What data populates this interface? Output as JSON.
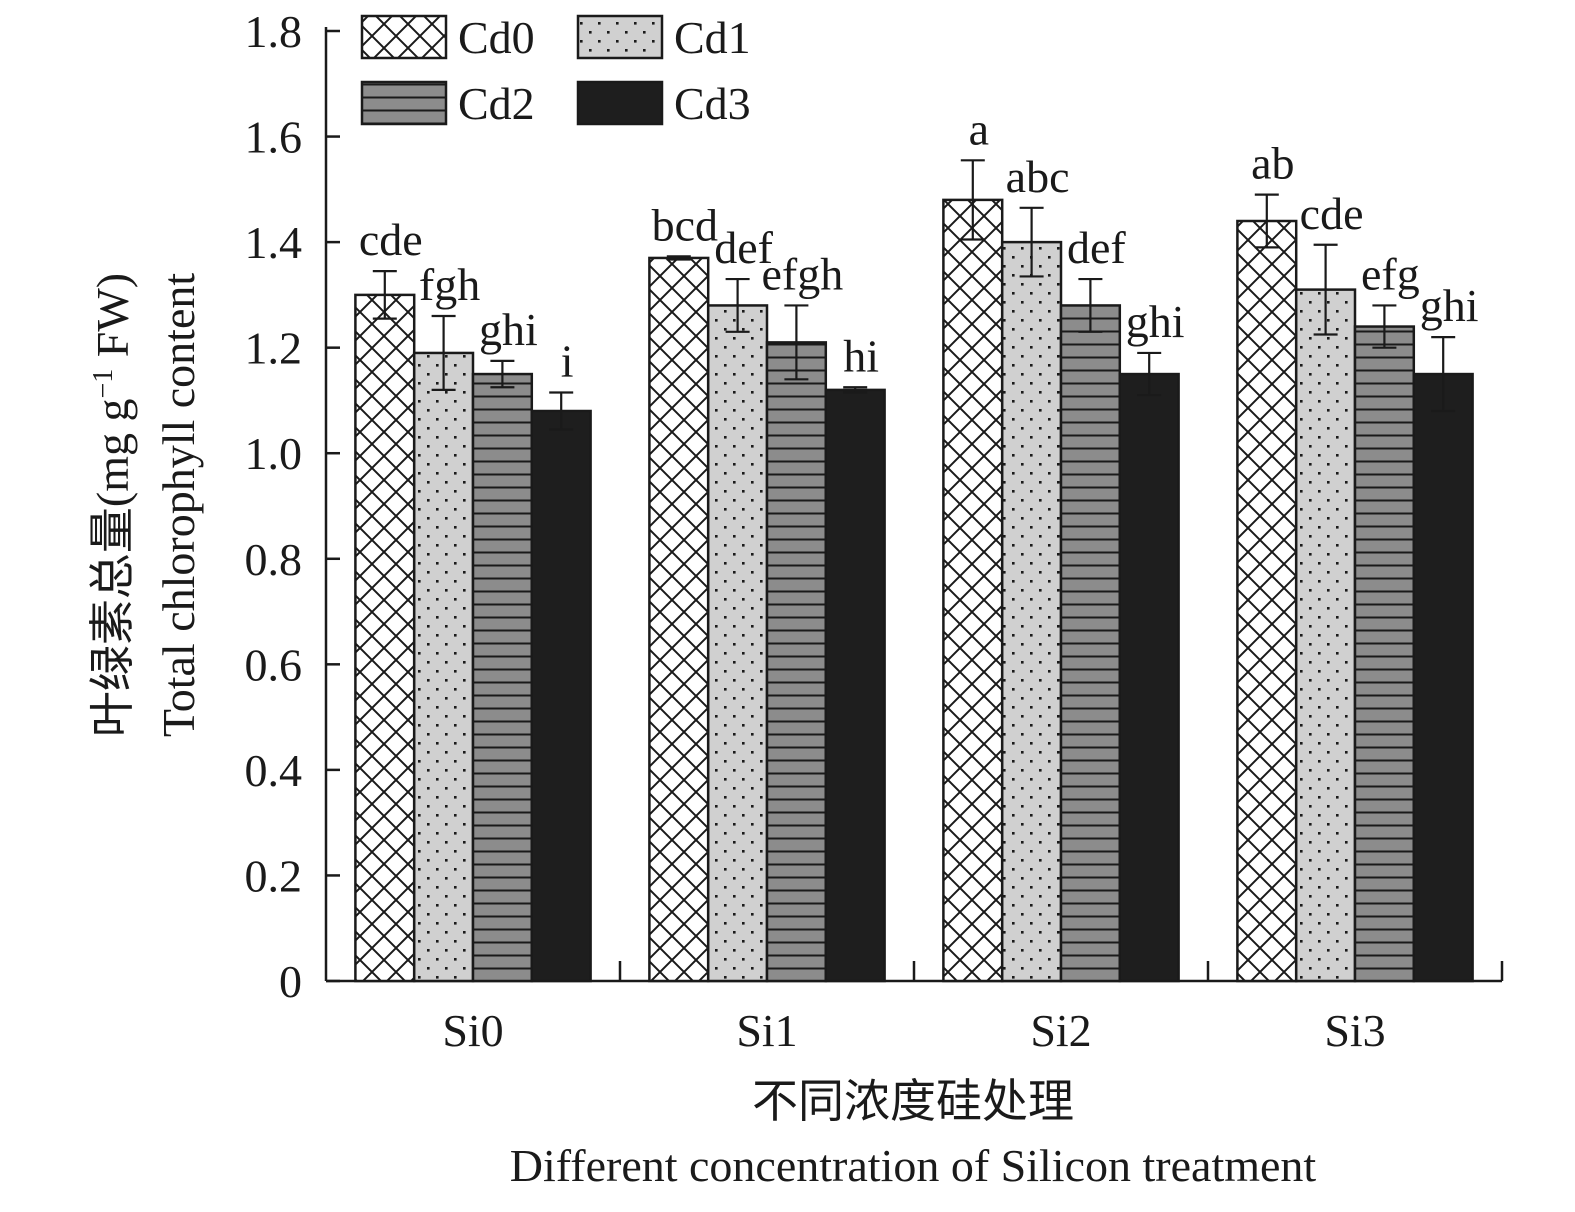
{
  "chart_data": {
    "type": "bar",
    "xlabel_cn": "不同浓度硅处理",
    "xlabel": "Different concentration of Silicon treatment",
    "ylabel_cn": "叶绿素总量",
    "ylabel_unit_open": "(mg g",
    "ylabel_unit_sup": "−1",
    "ylabel_unit_close": " FW)",
    "ylabel_en": "Total chlorophyll content",
    "ylim": [
      0,
      1.8
    ],
    "yticks": [
      "0",
      "0.2",
      "0.4",
      "0.6",
      "0.8",
      "1.0",
      "1.2",
      "1.4",
      "1.6",
      "1.8"
    ],
    "categories": [
      "Si0",
      "Si1",
      "Si2",
      "Si3"
    ],
    "legend_position": "top-left",
    "series": [
      {
        "name": "Cd0",
        "pattern": "crosshatch",
        "color": "#ffffff",
        "values": [
          1.3,
          1.37,
          1.48,
          1.44
        ],
        "errors": [
          0.045,
          0.003,
          0.075,
          0.05
        ],
        "letters": [
          "cde",
          "bcd",
          "a",
          "ab"
        ]
      },
      {
        "name": "Cd1",
        "pattern": "dots",
        "color": "#d0d0d0",
        "values": [
          1.19,
          1.28,
          1.4,
          1.31
        ],
        "errors": [
          0.07,
          0.05,
          0.065,
          0.085
        ],
        "letters": [
          "fgh",
          "def",
          "abc",
          "cde"
        ]
      },
      {
        "name": "Cd2",
        "pattern": "horizontal-lines",
        "color": "#8c8c8c",
        "values": [
          1.15,
          1.21,
          1.28,
          1.24
        ],
        "errors": [
          0.025,
          0.07,
          0.05,
          0.04
        ],
        "letters": [
          "ghi",
          "efgh",
          "def",
          "efg"
        ]
      },
      {
        "name": "Cd3",
        "pattern": "solid",
        "color": "#1e1e1e",
        "values": [
          1.08,
          1.12,
          1.15,
          1.15
        ],
        "errors": [
          0.035,
          0.005,
          0.04,
          0.07
        ],
        "letters": [
          "i",
          "hi",
          "ghi",
          "ghi"
        ]
      }
    ]
  }
}
